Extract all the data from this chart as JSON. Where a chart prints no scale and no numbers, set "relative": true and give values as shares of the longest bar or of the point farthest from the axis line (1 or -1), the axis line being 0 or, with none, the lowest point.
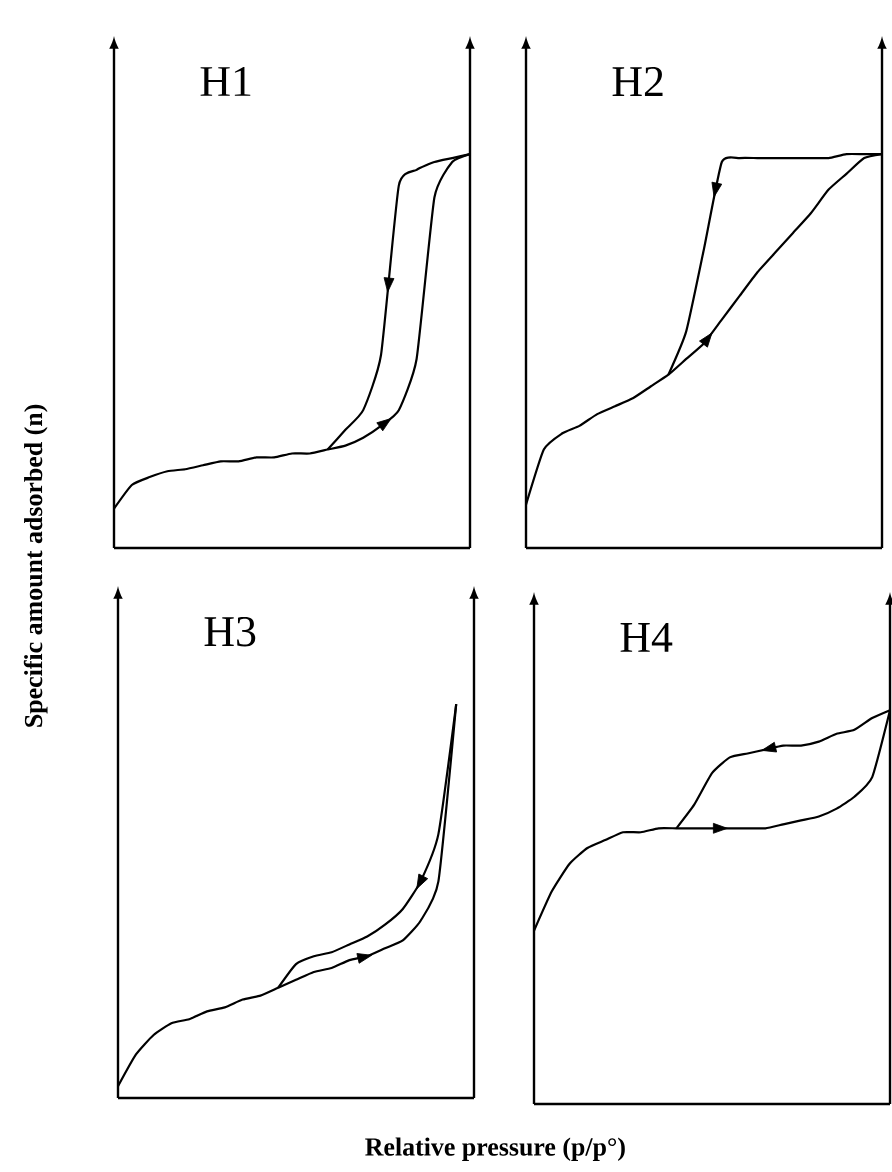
{
  "chart_data": [
    {
      "type": "line",
      "title": "H1",
      "ylabel": "Specific amount adsorbed (n)",
      "relative": true,
      "categories": [
        null,
        null,
        null,
        null,
        null,
        null,
        null,
        null,
        null,
        null,
        null,
        null,
        null,
        null,
        null,
        null,
        null,
        null,
        null,
        null,
        null
      ],
      "series": [
        {
          "color": "#000000",
          "values": [
            0.1,
            0.16,
            0.18,
            0.195,
            0.2,
            0.21,
            0.22,
            0.22,
            0.23,
            0.23,
            0.24,
            0.24,
            0.25,
            0.26,
            0.28,
            0.31,
            0.35,
            0.48,
            0.89,
            0.98,
            1.0
          ]
        },
        {
          "color": "#000000",
          "values": [
            null,
            null,
            null,
            null,
            null,
            null,
            null,
            null,
            null,
            null,
            null,
            null,
            0.25,
            0.3,
            0.35,
            0.49,
            0.92,
            0.96,
            0.98,
            0.99,
            1.0
          ]
        }
      ]
    },
    {
      "type": "line",
      "title": "H2",
      "relative": true,
      "categories": [
        null,
        null,
        null,
        null,
        null,
        null,
        null,
        null,
        null,
        null,
        null,
        null,
        null,
        null,
        null,
        null,
        null,
        null,
        null,
        null,
        null
      ],
      "series": [
        {
          "color": "#000000",
          "values": [
            0.11,
            0.25,
            0.29,
            0.31,
            0.34,
            0.36,
            0.38,
            0.41,
            0.44,
            0.48,
            0.52,
            0.58,
            0.64,
            0.7,
            0.75,
            0.8,
            0.85,
            0.91,
            0.95,
            0.99,
            1.0
          ]
        },
        {
          "color": "#000000",
          "values": [
            null,
            null,
            null,
            null,
            null,
            null,
            null,
            null,
            0.44,
            0.55,
            0.76,
            0.98,
            0.99,
            0.99,
            0.99,
            0.99,
            0.99,
            0.99,
            1.0,
            1.0,
            1.0
          ]
        }
      ]
    },
    {
      "type": "line",
      "title": "H3",
      "xlabel": "Relative pressure (p/p°)",
      "relative": true,
      "categories": [
        null,
        null,
        null,
        null,
        null,
        null,
        null,
        null,
        null,
        null,
        null,
        null,
        null,
        null,
        null,
        null,
        null,
        null,
        null,
        null,
        null
      ],
      "series": [
        {
          "color": "#000000",
          "values": [
            0.03,
            0.11,
            0.16,
            0.19,
            0.2,
            0.22,
            0.23,
            0.25,
            0.26,
            0.28,
            0.3,
            0.32,
            0.33,
            0.35,
            0.36,
            0.38,
            0.4,
            0.45,
            0.55,
            1.0,
            null
          ]
        },
        {
          "color": "#000000",
          "values": [
            null,
            null,
            null,
            null,
            null,
            null,
            null,
            null,
            null,
            0.28,
            0.34,
            0.36,
            0.37,
            0.39,
            0.41,
            0.44,
            0.48,
            0.55,
            0.67,
            1.0,
            null
          ]
        }
      ]
    },
    {
      "type": "line",
      "title": "H4",
      "relative": true,
      "categories": [
        null,
        null,
        null,
        null,
        null,
        null,
        null,
        null,
        null,
        null,
        null,
        null,
        null,
        null,
        null,
        null,
        null,
        null,
        null,
        null,
        null
      ],
      "series": [
        {
          "color": "#000000",
          "values": [
            0.44,
            0.54,
            0.61,
            0.65,
            0.67,
            0.69,
            0.69,
            0.7,
            0.7,
            0.7,
            0.7,
            0.7,
            0.7,
            0.7,
            0.71,
            0.72,
            0.73,
            0.75,
            0.78,
            0.83,
            1.0
          ]
        },
        {
          "color": "#000000",
          "values": [
            null,
            null,
            null,
            null,
            null,
            null,
            null,
            null,
            0.7,
            0.76,
            0.84,
            0.88,
            0.89,
            0.9,
            0.91,
            0.91,
            0.92,
            0.94,
            0.95,
            0.98,
            1.0
          ]
        }
      ]
    }
  ]
}
